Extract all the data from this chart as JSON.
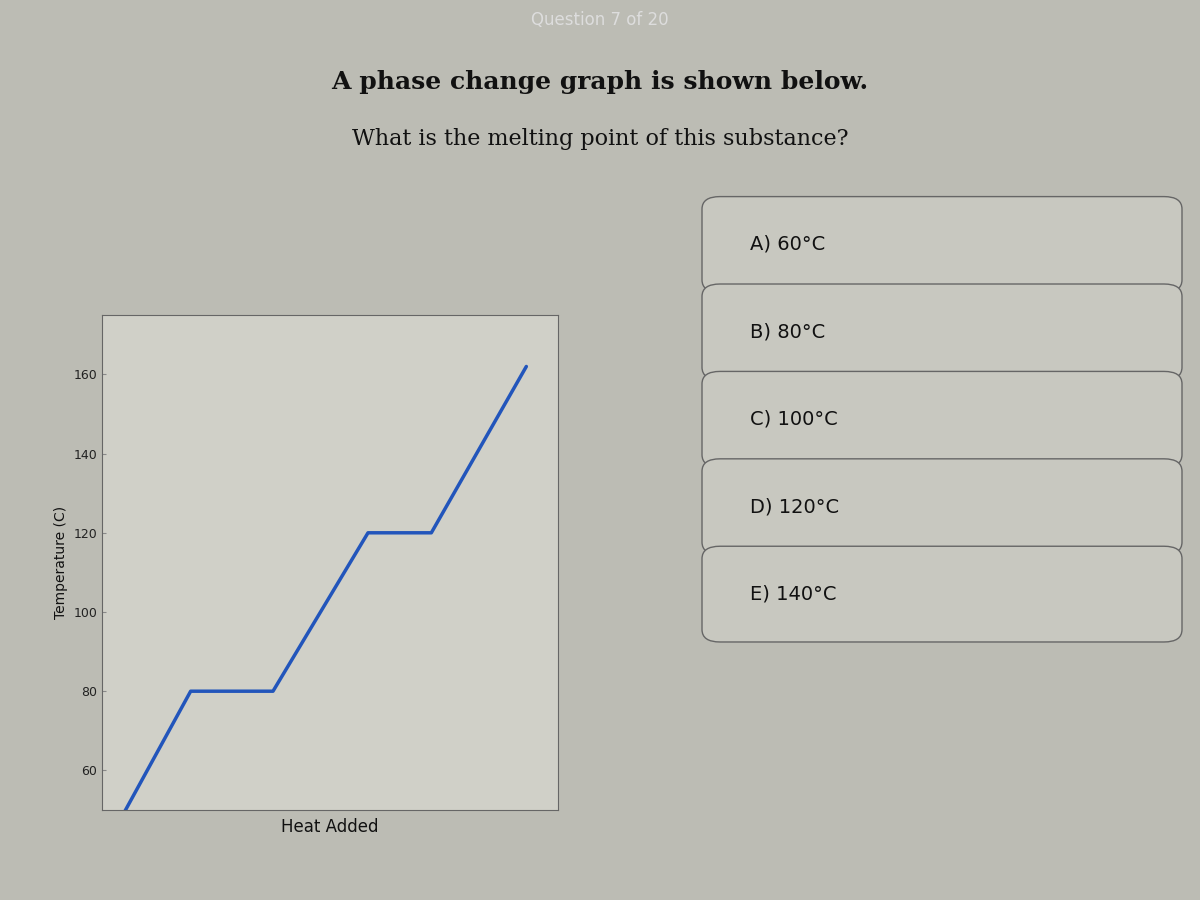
{
  "header_text": "Question 7 of 20",
  "header_bg": "#8B1010",
  "header_text_color": "#DDDDDD",
  "bg_color": "#BCBCB4",
  "question_line1": "A phase change graph is shown below.",
  "question_line2": "What is the melting point of this substance?",
  "graph_ylabel": "Temperature (C)",
  "graph_xlabel": "Heat Added",
  "graph_yticks": [
    60,
    80,
    100,
    120,
    140,
    160
  ],
  "graph_bg": "#D0D0C8",
  "line_color": "#2255BB",
  "choices": [
    "A) 60°C",
    "B) 80°C",
    "C) 100°C",
    "D) 120°C",
    "E) 140°C"
  ],
  "choice_box_color": "#C8C8C0",
  "choice_box_edge": "#666666",
  "choice_text_color": "#111111",
  "footer_bg": "#333333"
}
